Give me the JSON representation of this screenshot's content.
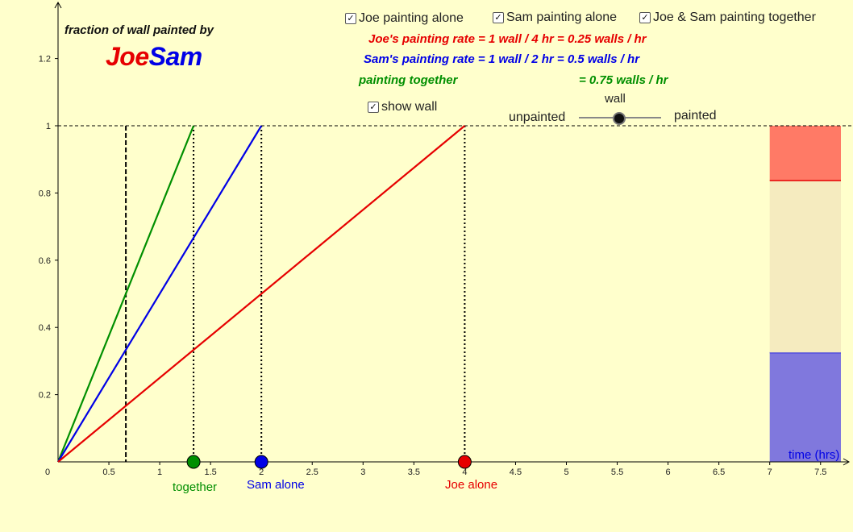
{
  "header": {
    "title": "fraction of wall painted by",
    "brand_joe": "Joe",
    "brand_sam": "Sam"
  },
  "toggles": [
    {
      "label": "Joe painting alone",
      "checked": true
    },
    {
      "label": "Sam painting alone",
      "checked": true
    },
    {
      "label": "Joe & Sam painting together",
      "checked": true
    }
  ],
  "rates": {
    "joe": "Joe's painting rate = 1 wall / 4 hr = 0.25 walls / hr",
    "sam": "Sam's painting rate = 1 wall / 2 hr = 0.5 walls / hr",
    "together_label": "painting together",
    "together_value": "= 0.75 walls / hr"
  },
  "wall_toggle": {
    "label": "show wall",
    "checked": true
  },
  "wall_slider": {
    "title": "wall",
    "min_label": "unpainted",
    "max_label": "painted"
  },
  "point_labels": {
    "together": "together",
    "sam": "Sam alone",
    "joe": "Joe alone"
  },
  "colors": {
    "background": "#ffffcc",
    "joe": "#e60000",
    "sam": "#0000e6",
    "together": "#008f00",
    "wall_painted_red": "#ff7a66",
    "wall_unpainted": "#f5ebbf",
    "wall_painted_blue": "#8078dd"
  },
  "chart_data": {
    "type": "line",
    "xlabel": "time (hrs)",
    "ylabel": "",
    "xlim": [
      0,
      7.75
    ],
    "ylim": [
      0,
      1.3
    ],
    "x_ticks": [
      "0",
      "0.5",
      "1",
      "1.5",
      "2",
      "2.5",
      "3",
      "3.5",
      "4",
      "4.5",
      "5",
      "5.5",
      "6",
      "6.5",
      "7",
      "7.5"
    ],
    "y_ticks": [
      "0.2",
      "0.4",
      "0.6",
      "0.8",
      "1",
      "1.2"
    ],
    "series": [
      {
        "key": "together",
        "x": [
          0,
          1.333
        ],
        "y": [
          0,
          1
        ],
        "color": "#008f00"
      },
      {
        "key": "sam",
        "x": [
          0,
          2
        ],
        "y": [
          0,
          1
        ],
        "color": "#0000e6"
      },
      {
        "key": "joe",
        "x": [
          0,
          4
        ],
        "y": [
          0,
          1
        ],
        "color": "#e60000"
      }
    ],
    "reference_line_y": 1,
    "time_marker_x": 0.667,
    "points": [
      {
        "key": "together",
        "x": 1.333,
        "y": 0,
        "color": "#008f00"
      },
      {
        "key": "sam",
        "x": 2,
        "y": 0,
        "color": "#0000e6"
      },
      {
        "key": "joe",
        "x": 4,
        "y": 0,
        "color": "#e60000"
      }
    ],
    "wall": {
      "x_from": 7,
      "x_to": 7.75,
      "bands": [
        {
          "y_from": 0,
          "y_to": 0.325,
          "fill": "#8078dd",
          "edge": "#0000e6"
        },
        {
          "y_from": 0.325,
          "y_to": 0.837,
          "fill": "#f5ebbf",
          "edge": null
        },
        {
          "y_from": 0.837,
          "y_to": 1,
          "fill": "#ff7a66",
          "edge": "#e60000"
        }
      ]
    }
  }
}
